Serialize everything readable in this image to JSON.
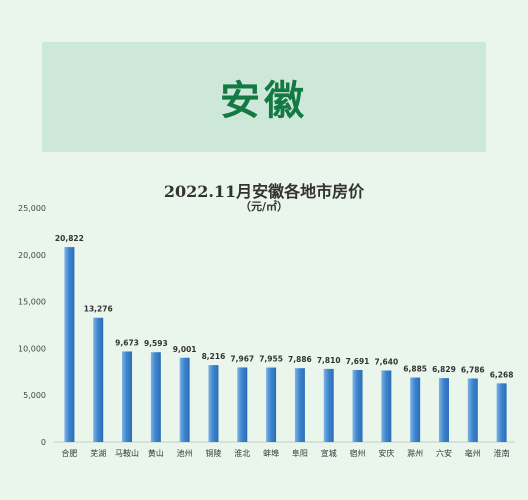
{
  "banner": {
    "title": "安徽"
  },
  "chart_data": {
    "type": "bar",
    "title": "2022.11月安徽各地市房价",
    "subtitle": "（元/㎡）",
    "categories": [
      "合肥",
      "芜湖",
      "马鞍山",
      "黄山",
      "池州",
      "铜陵",
      "淮北",
      "蚌埠",
      "阜阳",
      "宣城",
      "宿州",
      "安庆",
      "滁州",
      "六安",
      "亳州",
      "淮南"
    ],
    "values": [
      20822,
      13276,
      9673,
      9593,
      9001,
      8216,
      7967,
      7955,
      7886,
      7810,
      7691,
      7640,
      6885,
      6829,
      6786,
      6268
    ],
    "data_labels": [
      "20,822",
      "13,276",
      "9,673",
      "9,593",
      "9,001",
      "8,216",
      "7,967",
      "7,955",
      "7,886",
      "7,810",
      "7,691",
      "7,640",
      "6,885",
      "6,829",
      "6,786",
      "6,268"
    ],
    "y_ticks": [
      0,
      5000,
      10000,
      15000,
      20000,
      25000
    ],
    "y_tick_labels": [
      "0",
      "5,000",
      "10,000",
      "15,000",
      "20,000",
      "25,000"
    ],
    "ylim": [
      0,
      25000
    ],
    "grid": false,
    "colors": {
      "bar_top": "#7fb3e6",
      "bar_mid": "#3f86cf",
      "bar_bottom": "#2a6db5"
    }
  }
}
